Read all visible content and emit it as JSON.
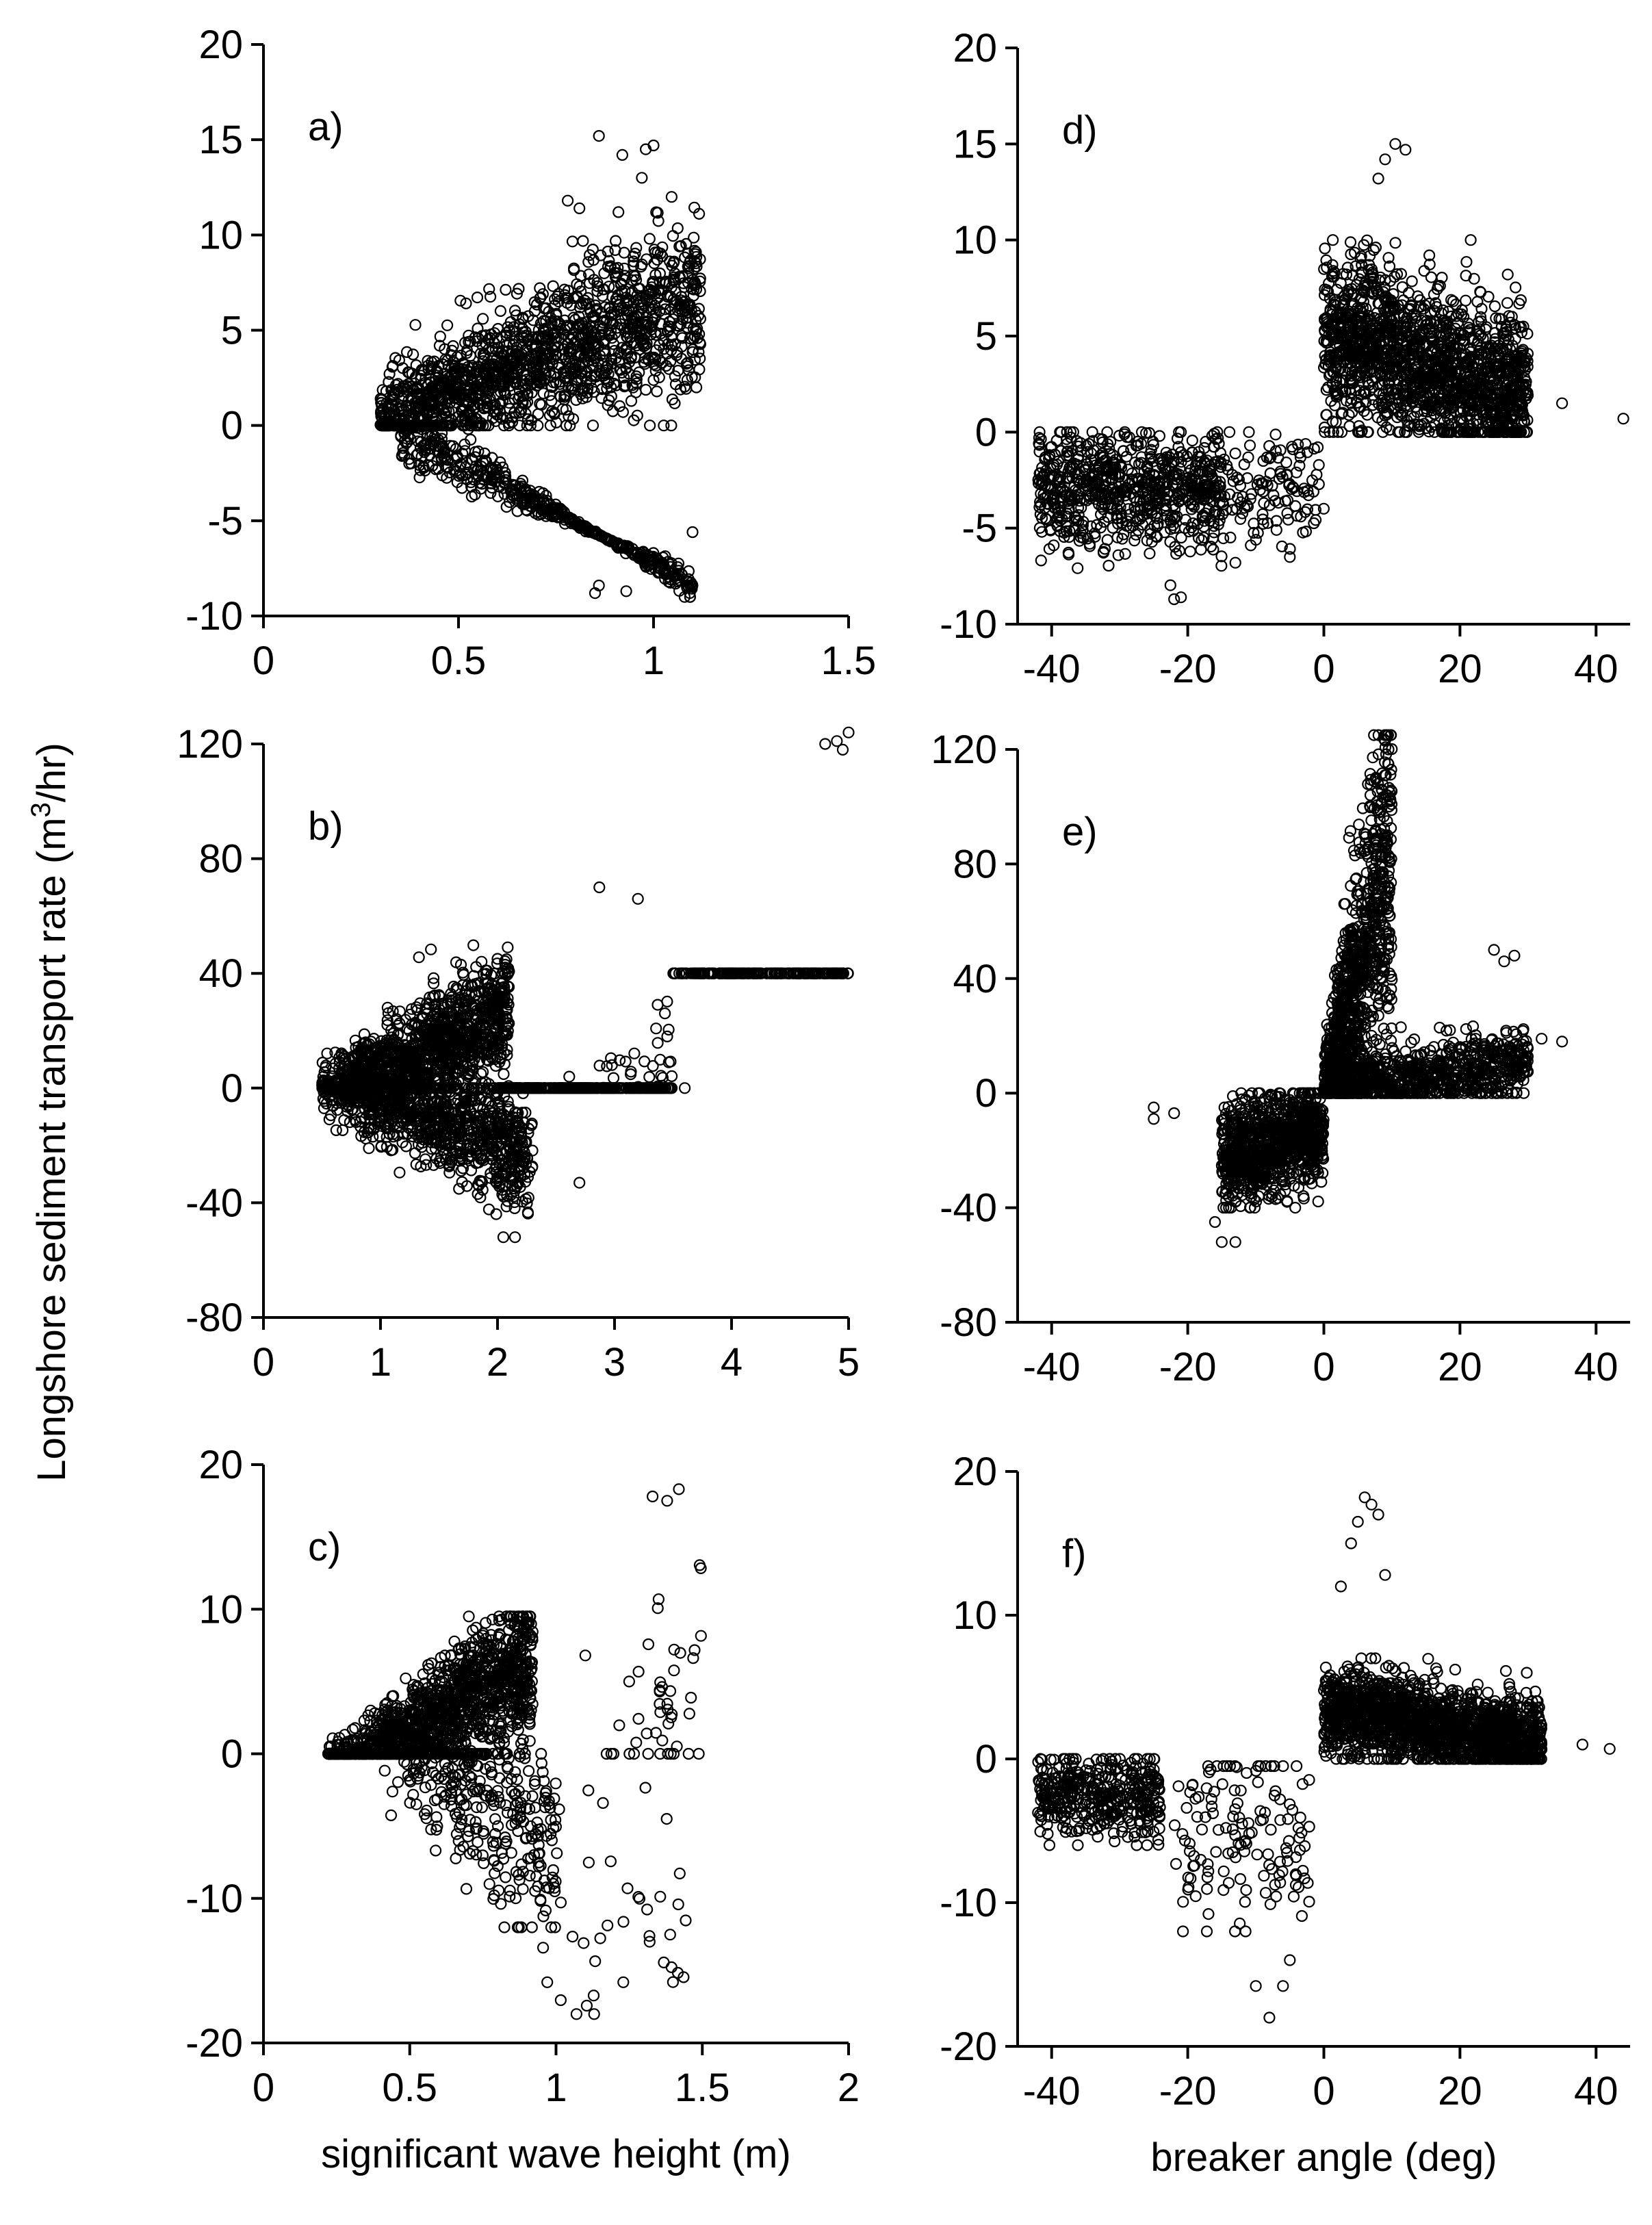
{
  "ylabel_prefix": "Longshore sediment transport rate (m",
  "ylabel_sup": "3",
  "ylabel_suffix": "/hr)",
  "chart_data": [
    {
      "id": "a",
      "type": "scatter",
      "panel_label": "a)",
      "xlabel": "",
      "ylabel": "Longshore sediment transport rate (m3/hr)",
      "xlim": [
        0,
        1.5
      ],
      "ylim": [
        -10,
        20
      ],
      "xticks": [
        0,
        0.5,
        1,
        1.5
      ],
      "yticks": [
        -10,
        -5,
        0,
        5,
        10,
        15,
        20
      ],
      "grid": false,
      "clusters": [
        {
          "n": 1500,
          "x": [
            0.3,
            1.12
          ],
          "trend": [
            0.2,
            6.5,
            1.2,
            0
          ],
          "y_lo": 0,
          "y_hi": 12
        },
        {
          "n": 500,
          "x": [
            0.35,
            1.1
          ],
          "trend": [
            -0.3,
            -8.0,
            -1.0,
            0
          ],
          "y_lo": -9,
          "y_hi": 0
        }
      ],
      "outliers": [
        [
          0.86,
          15.2
        ],
        [
          0.92,
          14.2
        ],
        [
          0.98,
          14.5
        ],
        [
          1.0,
          14.7
        ],
        [
          0.97,
          13.0
        ],
        [
          0.78,
          11.8
        ],
        [
          0.81,
          11.4
        ],
        [
          0.91,
          11.2
        ],
        [
          0.99,
          9.8
        ],
        [
          1.12,
          5.6
        ],
        [
          0.85,
          -8.8
        ],
        [
          0.93,
          -8.7
        ],
        [
          0.86,
          -8.4
        ],
        [
          1.1,
          -5.6
        ]
      ]
    },
    {
      "id": "b",
      "type": "scatter",
      "panel_label": "b)",
      "xlabel": "",
      "ylabel": "Longshore sediment transport rate (m3/hr)",
      "xlim": [
        0,
        5
      ],
      "ylim": [
        -80,
        120
      ],
      "xticks": [
        0,
        1,
        2,
        3,
        4,
        5
      ],
      "yticks": [
        -80,
        -40,
        0,
        40,
        80,
        120
      ],
      "grid": false,
      "clusters": [
        {
          "n": 1400,
          "x": [
            0.5,
            2.1
          ],
          "trend": [
            -5,
            32,
            6,
            0
          ],
          "y_lo": 0,
          "y_hi": 52
        },
        {
          "n": 1000,
          "x": [
            0.5,
            2.3
          ],
          "trend": [
            3,
            -25,
            6,
            0
          ],
          "y_lo": -52,
          "y_hi": 0
        },
        {
          "n": 350,
          "x": [
            2.0,
            3.5
          ],
          "trend": [
            -38,
            32,
            10,
            0
          ],
          "y_lo": 0,
          "y_hi": 75
        },
        {
          "n": 200,
          "x": [
            3.5,
            5.0
          ],
          "trend": [
            -80,
            40,
            12,
            0
          ],
          "y_lo": 40,
          "y_hi": 125
        }
      ],
      "outliers": [
        [
          5.0,
          124
        ],
        [
          4.9,
          121
        ],
        [
          4.8,
          120
        ],
        [
          4.95,
          118
        ],
        [
          3.6,
          0
        ],
        [
          3.45,
          18
        ],
        [
          2.7,
          -33
        ],
        [
          2.15,
          -52
        ],
        [
          2.05,
          -52
        ],
        [
          3.2,
          66
        ],
        [
          2.87,
          70
        ]
      ]
    },
    {
      "id": "c",
      "type": "scatter",
      "panel_label": "c)",
      "xlabel": "significant wave height (m)",
      "ylabel": "Longshore sediment transport rate (m3/hr)",
      "xlim": [
        0,
        2
      ],
      "ylim": [
        -20,
        20
      ],
      "xticks": [
        0,
        0.5,
        1,
        1.5,
        2
      ],
      "yticks": [
        -20,
        -10,
        0,
        10,
        20
      ],
      "grid": false,
      "clusters": [
        {
          "n": 1500,
          "x": [
            0.22,
            0.92
          ],
          "trend": [
            -2.0,
            8.5,
            1.0,
            0
          ],
          "y_lo": 0,
          "y_hi": 9.5
        },
        {
          "n": 400,
          "x": [
            0.4,
            1.0
          ],
          "trend": [
            2.5,
            -10,
            2.0,
            0
          ],
          "y_lo": -12,
          "y_hi": 0
        },
        {
          "n": 45,
          "x": [
            1.15,
            1.5
          ],
          "trend": [
            -6,
            14,
            3,
            0
          ],
          "y_lo": 0,
          "y_hi": 18.5
        },
        {
          "n": 35,
          "x": [
            0.95,
            1.45
          ],
          "trend": [
            -12,
            2,
            4,
            0
          ],
          "y_lo": -18,
          "y_hi": 0
        }
      ],
      "outliers": [
        [
          1.42,
          18.3
        ],
        [
          1.38,
          17.5
        ],
        [
          1.33,
          17.8
        ],
        [
          1.25,
          5.0
        ],
        [
          1.07,
          -18.0
        ],
        [
          0.97,
          -15.8
        ],
        [
          1.23,
          -15.8
        ],
        [
          1.32,
          -13.0
        ],
        [
          1.1,
          6.8
        ]
      ]
    },
    {
      "id": "d",
      "type": "scatter",
      "panel_label": "d)",
      "xlabel": "",
      "ylabel": "",
      "xlim": [
        -45,
        45
      ],
      "ylim": [
        -10,
        20
      ],
      "xticks": [
        -40,
        -20,
        0,
        20,
        40
      ],
      "yticks": [
        -10,
        -5,
        0,
        5,
        10,
        15,
        20
      ],
      "grid": false,
      "clusters": [
        {
          "n": 1600,
          "x": [
            0,
            30
          ],
          "trend": [
            4.0,
            0,
            -0.08,
            0
          ],
          "y_lo": 0,
          "y_hi": 10
        },
        {
          "n": 700,
          "x": [
            -42,
            -15
          ],
          "trend": [
            -3.0,
            0,
            0,
            0
          ],
          "y_lo": -8,
          "y_hi": 0
        },
        {
          "n": 120,
          "x": [
            -15,
            0
          ],
          "trend": [
            -3.0,
            0,
            0.15,
            0
          ],
          "y_lo": -7,
          "y_hi": 0
        }
      ],
      "outliers": [
        [
          10.5,
          15.0
        ],
        [
          12,
          14.7
        ],
        [
          9,
          14.2
        ],
        [
          8,
          13.2
        ],
        [
          15.5,
          9.2
        ],
        [
          35,
          1.5
        ],
        [
          44,
          0.7
        ],
        [
          -21,
          -8.6
        ],
        [
          -22,
          -8.7
        ],
        [
          -5,
          -6.5
        ],
        [
          -13,
          -6.8
        ]
      ]
    },
    {
      "id": "e",
      "type": "scatter",
      "panel_label": "e)",
      "xlabel": "",
      "ylabel": "",
      "xlim": [
        -45,
        45
      ],
      "ylim": [
        -80,
        120
      ],
      "xticks": [
        -40,
        -20,
        0,
        20,
        40
      ],
      "yticks": [
        -80,
        -40,
        0,
        40,
        80,
        120
      ],
      "grid": false,
      "clusters": [
        {
          "n": 900,
          "x": [
            0,
            10
          ],
          "trend": [
            0,
            8,
            0,
            0
          ],
          "y_lo": 0,
          "y_hi": 125
        },
        {
          "n": 700,
          "x": [
            2,
            30
          ],
          "trend": [
            3,
            0,
            0.02,
            0.9
          ],
          "y_lo": 0,
          "y_hi": 30
        },
        {
          "n": 900,
          "x": [
            -15,
            0
          ],
          "trend": [
            -8,
            0,
            0.3,
            0
          ],
          "y_lo": -40,
          "y_hi": 0
        }
      ],
      "outliers": [
        [
          9,
          123
        ],
        [
          9.5,
          120
        ],
        [
          25,
          50
        ],
        [
          26.5,
          46
        ],
        [
          28,
          48
        ],
        [
          35,
          18
        ],
        [
          32,
          19
        ],
        [
          -25,
          -5
        ],
        [
          -25,
          -9
        ],
        [
          -22,
          -7
        ],
        [
          -16,
          -45
        ],
        [
          -15,
          -52
        ],
        [
          -13,
          -52
        ]
      ]
    },
    {
      "id": "f",
      "type": "scatter",
      "panel_label": "f)",
      "xlabel": "breaker angle (deg)",
      "ylabel": "",
      "xlim": [
        -45,
        45
      ],
      "ylim": [
        -20,
        20
      ],
      "xticks": [
        -40,
        -20,
        0,
        20,
        40
      ],
      "yticks": [
        -20,
        -10,
        0,
        10,
        20
      ],
      "grid": false,
      "clusters": [
        {
          "n": 1700,
          "x": [
            0,
            32
          ],
          "trend": [
            2.5,
            0,
            -0.05,
            0
          ],
          "y_lo": 0,
          "y_hi": 7
        },
        {
          "n": 400,
          "x": [
            -42,
            -24
          ],
          "trend": [
            -2.5,
            0,
            0,
            0
          ],
          "y_lo": -6,
          "y_hi": 0
        },
        {
          "n": 140,
          "x": [
            -22,
            -2
          ],
          "trend": [
            -5,
            0,
            0,
            0
          ],
          "y_lo": -12,
          "y_hi": -0.5
        }
      ],
      "outliers": [
        [
          6,
          18.2
        ],
        [
          7,
          17.7
        ],
        [
          8,
          17.0
        ],
        [
          5,
          16.5
        ],
        [
          4,
          15.0
        ],
        [
          9,
          12.8
        ],
        [
          2.5,
          12.0
        ],
        [
          -10,
          -15.8
        ],
        [
          -8,
          -18.0
        ],
        [
          -6,
          -15.8
        ],
        [
          -5,
          -14.0
        ],
        [
          42,
          0.7
        ],
        [
          38,
          1.0
        ]
      ]
    }
  ]
}
